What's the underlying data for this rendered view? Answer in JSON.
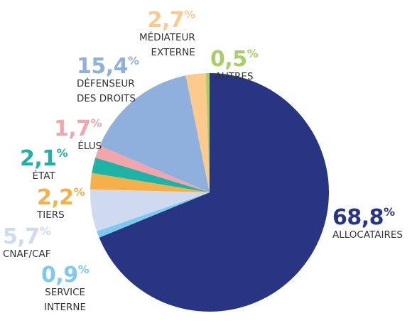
{
  "chart_data": {
    "type": "pie",
    "categories": [
      "ALLOCATAIRES",
      "SERVICE\nINTERNE",
      "CNAF/CAF",
      "TIERS",
      "ÉTAT",
      "ÉLUS",
      "DÉFENSEUR\nDES DROITS",
      "MÉDIATEUR\nEXTERNE",
      "AUTRES"
    ],
    "values": [
      68.8,
      0.9,
      5.7,
      2.2,
      2.1,
      1.7,
      15.4,
      2.7,
      0.5
    ],
    "value_labels": [
      "68,8",
      "0,9",
      "5,7",
      "2,2",
      "2,1",
      "1,7",
      "15,4",
      "2,7",
      "0,5"
    ],
    "unit": "%",
    "colors": [
      "#283583",
      "#7ccaf0",
      "#cfd9ef",
      "#f5b04a",
      "#1db3a6",
      "#f2a5aa",
      "#8fb0dd",
      "#fcca8c",
      "#a7cf66"
    ]
  }
}
